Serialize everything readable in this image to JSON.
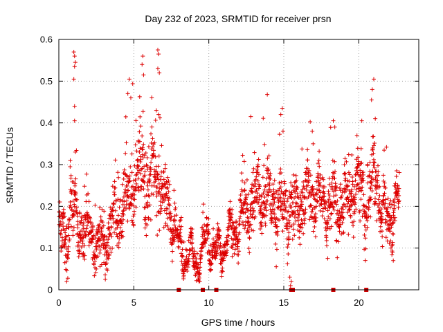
{
  "chart_data": {
    "type": "scatter",
    "title": "Day 232 of 2023, SRMTID for receiver prsn",
    "xlabel": "GPS time / hours",
    "ylabel": "SRMTID / TECUs",
    "xlim": [
      0,
      24
    ],
    "ylim": [
      0,
      0.6
    ],
    "xticks": [
      0,
      5,
      10,
      15,
      20
    ],
    "xtick_labels": [
      "0",
      "5",
      "10",
      "15",
      "20"
    ],
    "yticks": [
      0,
      0.1,
      0.2,
      0.3,
      0.4,
      0.5,
      0.6
    ],
    "ytick_labels": [
      "0",
      "0.1",
      "0.2",
      "0.3",
      "0.4",
      "0.5",
      "0.6"
    ],
    "grid": true,
    "marker": "+",
    "marker_color": "#dd0000",
    "zero_marker_color": "#cc0000",
    "x_range_of_data": [
      0,
      22.7
    ],
    "trend_profile": [
      {
        "x": 0.0,
        "y": 0.14,
        "spread": 0.05
      },
      {
        "x": 0.5,
        "y": 0.11,
        "spread": 0.05
      },
      {
        "x": 0.8,
        "y": 0.22,
        "spread": 0.06
      },
      {
        "x": 1.1,
        "y": 0.16,
        "spread": 0.06
      },
      {
        "x": 1.6,
        "y": 0.15,
        "spread": 0.06
      },
      {
        "x": 2.2,
        "y": 0.12,
        "spread": 0.05
      },
      {
        "x": 3.0,
        "y": 0.11,
        "spread": 0.05
      },
      {
        "x": 3.6,
        "y": 0.15,
        "spread": 0.06
      },
      {
        "x": 4.2,
        "y": 0.19,
        "spread": 0.06
      },
      {
        "x": 4.8,
        "y": 0.24,
        "spread": 0.08
      },
      {
        "x": 5.3,
        "y": 0.29,
        "spread": 0.09
      },
      {
        "x": 5.9,
        "y": 0.26,
        "spread": 0.09
      },
      {
        "x": 6.5,
        "y": 0.28,
        "spread": 0.09
      },
      {
        "x": 7.0,
        "y": 0.22,
        "spread": 0.07
      },
      {
        "x": 7.6,
        "y": 0.17,
        "spread": 0.05
      },
      {
        "x": 8.0,
        "y": 0.1,
        "spread": 0.03
      },
      {
        "x": 8.6,
        "y": 0.08,
        "spread": 0.025
      },
      {
        "x": 9.3,
        "y": 0.07,
        "spread": 0.025
      },
      {
        "x": 9.7,
        "y": 0.1,
        "spread": 0.03
      },
      {
        "x": 10.0,
        "y": 0.14,
        "spread": 0.04
      },
      {
        "x": 10.4,
        "y": 0.08,
        "spread": 0.025
      },
      {
        "x": 11.0,
        "y": 0.11,
        "spread": 0.03
      },
      {
        "x": 11.8,
        "y": 0.14,
        "spread": 0.04
      },
      {
        "x": 12.5,
        "y": 0.19,
        "spread": 0.05
      },
      {
        "x": 13.2,
        "y": 0.22,
        "spread": 0.06
      },
      {
        "x": 14.0,
        "y": 0.22,
        "spread": 0.06
      },
      {
        "x": 14.8,
        "y": 0.19,
        "spread": 0.06
      },
      {
        "x": 15.5,
        "y": 0.19,
        "spread": 0.06
      },
      {
        "x": 16.2,
        "y": 0.21,
        "spread": 0.06
      },
      {
        "x": 17.0,
        "y": 0.23,
        "spread": 0.06
      },
      {
        "x": 17.8,
        "y": 0.2,
        "spread": 0.06
      },
      {
        "x": 18.5,
        "y": 0.2,
        "spread": 0.06
      },
      {
        "x": 19.3,
        "y": 0.22,
        "spread": 0.06
      },
      {
        "x": 20.0,
        "y": 0.25,
        "spread": 0.06
      },
      {
        "x": 20.6,
        "y": 0.2,
        "spread": 0.06
      },
      {
        "x": 21.1,
        "y": 0.3,
        "spread": 0.07
      },
      {
        "x": 21.5,
        "y": 0.19,
        "spread": 0.06
      },
      {
        "x": 22.0,
        "y": 0.16,
        "spread": 0.05
      },
      {
        "x": 22.7,
        "y": 0.22,
        "spread": 0.05
      }
    ],
    "notable_points": [
      {
        "x": 1.0,
        "y": 0.57
      },
      {
        "x": 1.05,
        "y": 0.56
      },
      {
        "x": 1.1,
        "y": 0.545
      },
      {
        "x": 1.05,
        "y": 0.535
      },
      {
        "x": 1.0,
        "y": 0.505
      },
      {
        "x": 1.05,
        "y": 0.44
      },
      {
        "x": 1.05,
        "y": 0.405
      },
      {
        "x": 1.1,
        "y": 0.33
      },
      {
        "x": 4.7,
        "y": 0.505
      },
      {
        "x": 4.6,
        "y": 0.47
      },
      {
        "x": 4.8,
        "y": 0.46
      },
      {
        "x": 5.6,
        "y": 0.56
      },
      {
        "x": 5.55,
        "y": 0.54
      },
      {
        "x": 5.65,
        "y": 0.515
      },
      {
        "x": 6.6,
        "y": 0.575
      },
      {
        "x": 6.65,
        "y": 0.565
      },
      {
        "x": 6.6,
        "y": 0.53
      },
      {
        "x": 6.7,
        "y": 0.52
      },
      {
        "x": 6.5,
        "y": 0.43
      },
      {
        "x": 12.8,
        "y": 0.415
      },
      {
        "x": 14.9,
        "y": 0.435
      },
      {
        "x": 14.8,
        "y": 0.42
      },
      {
        "x": 14.95,
        "y": 0.38
      },
      {
        "x": 16.9,
        "y": 0.38
      },
      {
        "x": 18.3,
        "y": 0.405
      },
      {
        "x": 18.4,
        "y": 0.39
      },
      {
        "x": 20.2,
        "y": 0.405
      },
      {
        "x": 21.0,
        "y": 0.505
      },
      {
        "x": 20.9,
        "y": 0.48
      },
      {
        "x": 20.85,
        "y": 0.455
      },
      {
        "x": 21.1,
        "y": 0.41
      },
      {
        "x": 15.4,
        "y": 0.03
      },
      {
        "x": 15.5,
        "y": 0.02
      },
      {
        "x": 15.45,
        "y": 0.01
      },
      {
        "x": 3.1,
        "y": 0.025
      },
      {
        "x": 2.5,
        "y": 0.05
      },
      {
        "x": 0.4,
        "y": 0.065
      },
      {
        "x": 22.3,
        "y": 0.07
      },
      {
        "x": 22.25,
        "y": 0.09
      }
    ],
    "zero_points_x": [
      8.0,
      9.6,
      10.5,
      15.5,
      15.6,
      18.3,
      20.5
    ],
    "point_count": 2200,
    "random_seed": 232
  }
}
